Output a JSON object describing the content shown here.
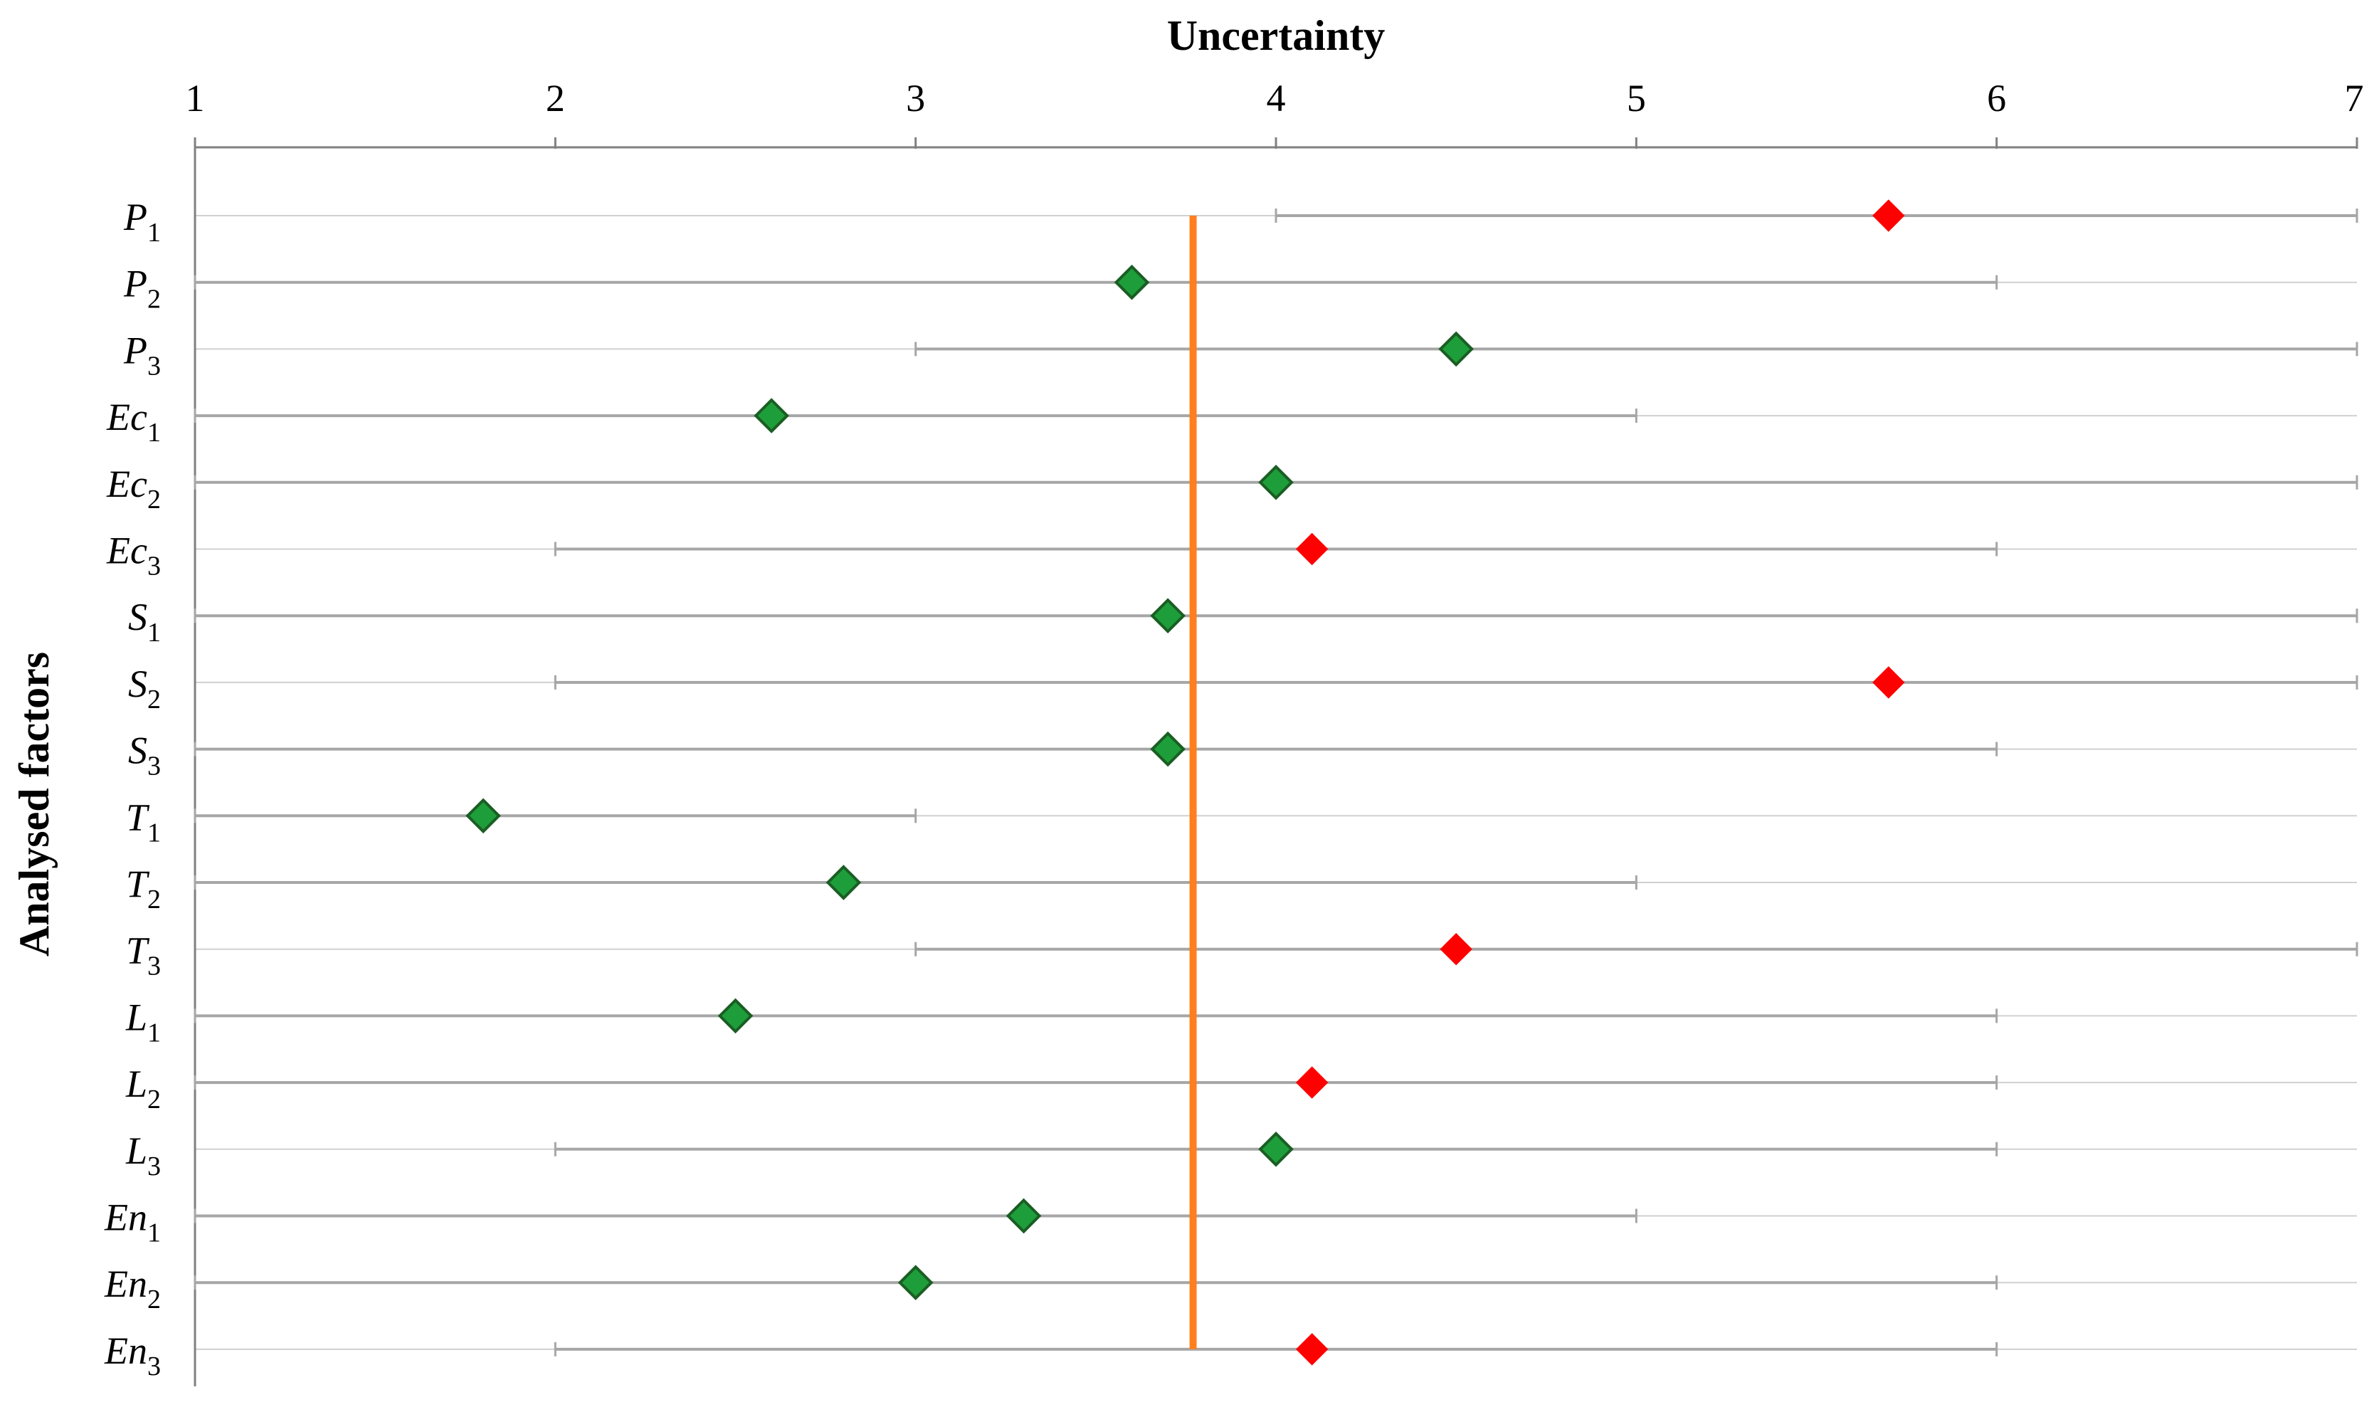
{
  "chart_data": {
    "type": "scatter",
    "title": "",
    "xlabel": "Uncertainty",
    "ylabel": "Analysed factors",
    "xlim": [
      1,
      7
    ],
    "x_ticks": [
      "1",
      "2",
      "3",
      "4",
      "5",
      "6",
      "7"
    ],
    "x_axis_position": "top",
    "grid": "horizontal",
    "legend": "none",
    "reference_line": {
      "x": 3.77,
      "color": "#ff7f1e"
    },
    "colors": {
      "green": "#1e9e3a",
      "green_edge": "#1a5e24",
      "red": "#ff0000",
      "range_line": "#a6a6a6",
      "grid": "#d0d0d0",
      "axis": "#808080"
    },
    "categories": [
      {
        "name": "P",
        "sub": "1",
        "value": 5.7,
        "range": [
          4,
          7
        ],
        "color": "red"
      },
      {
        "name": "P",
        "sub": "2",
        "value": 3.6,
        "range": [
          1,
          6
        ],
        "color": "green"
      },
      {
        "name": "P",
        "sub": "3",
        "value": 4.5,
        "range": [
          3,
          7
        ],
        "color": "green"
      },
      {
        "name": "Ec",
        "sub": "1",
        "value": 2.6,
        "range": [
          1,
          5
        ],
        "color": "green"
      },
      {
        "name": "Ec",
        "sub": "2",
        "value": 4.0,
        "range": [
          1,
          7
        ],
        "color": "green"
      },
      {
        "name": "Ec",
        "sub": "3",
        "value": 4.1,
        "range": [
          2,
          6
        ],
        "color": "red"
      },
      {
        "name": "S",
        "sub": "1",
        "value": 3.7,
        "range": [
          1,
          7
        ],
        "color": "green"
      },
      {
        "name": "S",
        "sub": "2",
        "value": 5.7,
        "range": [
          2,
          7
        ],
        "color": "red"
      },
      {
        "name": "S",
        "sub": "3",
        "value": 3.7,
        "range": [
          1,
          6
        ],
        "color": "green"
      },
      {
        "name": "T",
        "sub": "1",
        "value": 1.8,
        "range": [
          1,
          3
        ],
        "color": "green"
      },
      {
        "name": "T",
        "sub": "2",
        "value": 2.8,
        "range": [
          1,
          5
        ],
        "color": "green"
      },
      {
        "name": "T",
        "sub": "3",
        "value": 4.5,
        "range": [
          3,
          7
        ],
        "color": "red"
      },
      {
        "name": "L",
        "sub": "1",
        "value": 2.5,
        "range": [
          1,
          6
        ],
        "color": "green"
      },
      {
        "name": "L",
        "sub": "2",
        "value": 4.1,
        "range": [
          1,
          6
        ],
        "color": "red"
      },
      {
        "name": "L",
        "sub": "3",
        "value": 4.0,
        "range": [
          2,
          6
        ],
        "color": "green"
      },
      {
        "name": "En",
        "sub": "1",
        "value": 3.3,
        "range": [
          1,
          5
        ],
        "color": "green"
      },
      {
        "name": "En",
        "sub": "2",
        "value": 3.0,
        "range": [
          1,
          6
        ],
        "color": "green"
      },
      {
        "name": "En",
        "sub": "3",
        "value": 4.1,
        "range": [
          2,
          6
        ],
        "color": "red"
      }
    ]
  }
}
